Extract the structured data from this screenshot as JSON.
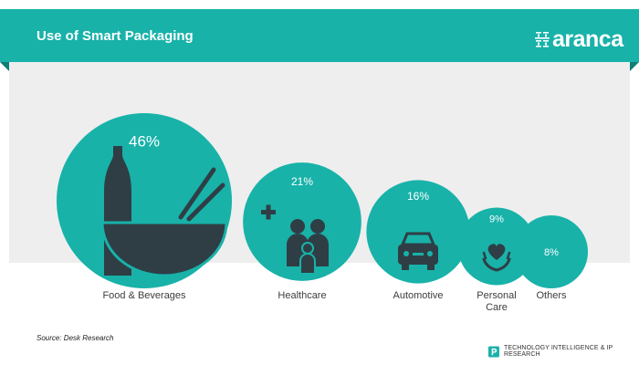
{
  "header": {
    "title": "Use of Smart Packaging",
    "brand_name": "aranca",
    "brand_icon": "aranca-logo-glyph"
  },
  "chart_data": {
    "type": "bubble",
    "title": "Use of Smart Packaging",
    "categories": [
      "Food & Beverages",
      "Healthcare",
      "Automotive",
      "Personal\nCare",
      "Others"
    ],
    "values": [
      46,
      21,
      16,
      9,
      8
    ],
    "value_labels": [
      "46%",
      "21%",
      "16%",
      "9%",
      "8%"
    ],
    "icons": [
      "bottle-bowl-chopsticks-icon",
      "family-health-icon",
      "car-icon",
      "heart-hands-icon",
      null
    ],
    "unit": "%"
  },
  "source": "Source: Desk Research",
  "footer": {
    "text": "TECHNOLOGY INTELLIGENCE & IP RESEARCH",
    "icon": "aranca-p-badge-icon"
  },
  "colors": {
    "accent": "#18b2a9",
    "accent_dark": "#0e7f78",
    "icon": "#2f3e45",
    "panel": "#eeeeee"
  }
}
